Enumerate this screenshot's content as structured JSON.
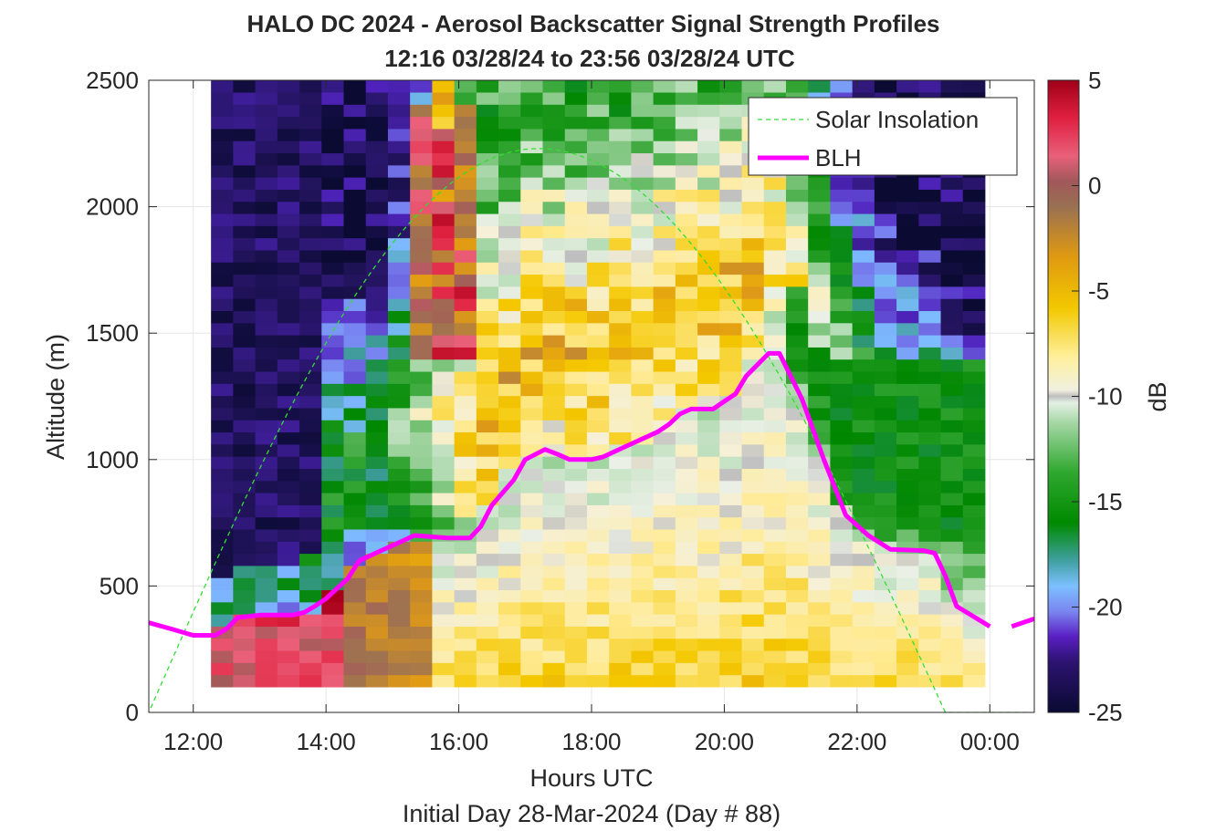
{
  "chart_data": {
    "type": "heatmap",
    "title": "HALO DC 2024 - Aerosol Backscatter Signal Strength Profiles",
    "subtitle": "12:16 03/28/24 to 23:56 03/28/24  UTC",
    "xlabel": "Hours UTC",
    "xlabel2": "Initial Day 28-Mar-2024 (Day # 88)",
    "ylabel": "Altitude (m)",
    "xlim": [
      11.33,
      24.67
    ],
    "ylim": [
      0,
      2500
    ],
    "xticks": [
      12,
      14,
      16,
      18,
      20,
      22,
      24
    ],
    "xtick_labels": [
      "12:00",
      "14:00",
      "16:00",
      "18:00",
      "20:00",
      "22:00",
      "00:00"
    ],
    "yticks": [
      0,
      500,
      1000,
      1500,
      2000,
      2500
    ],
    "ytick_labels": [
      "0",
      "500",
      "1000",
      "1500",
      "2000",
      "2500"
    ],
    "grid": true,
    "colorbar": {
      "label": "dB",
      "range": [
        -25,
        5
      ],
      "ticks": [
        -25,
        -20,
        -15,
        -10,
        -5,
        0,
        5
      ],
      "tick_labels": [
        "-25",
        "-20",
        "-15",
        "-10",
        "-5",
        "0",
        "5"
      ]
    },
    "legend": {
      "placement": "top-right",
      "entries": [
        {
          "label": "Solar Insolation",
          "color": "#33dd33",
          "style": "dashed"
        },
        {
          "label": "BLH",
          "color": "#ff00ff",
          "style": "solid"
        }
      ]
    },
    "heatmap": {
      "x_start": 12.27,
      "x_end": 23.93,
      "y_start": 100,
      "y_end": 2500,
      "x_bins": 35,
      "y_bins": 50,
      "value_range_db": [
        -25,
        5
      ]
    },
    "series": [
      {
        "name": "BLH",
        "color": "#ff00ff",
        "x": [
          11.33,
          11.67,
          12.0,
          12.17,
          12.33,
          12.5,
          12.67,
          13.0,
          13.3,
          13.5,
          13.67,
          13.83,
          14.0,
          14.33,
          14.5,
          14.83,
          15.0,
          15.17,
          15.33,
          15.83,
          16.17,
          16.33,
          16.5,
          16.83,
          17.0,
          17.3,
          17.5,
          17.67,
          18.0,
          18.17,
          18.5,
          19.0,
          19.17,
          19.33,
          19.5,
          19.83,
          20.0,
          20.17,
          20.33,
          20.67,
          20.83,
          21.17,
          21.5,
          21.83,
          22.17,
          22.5,
          23.0,
          23.17,
          23.33,
          23.5,
          24.0
        ]
      },
      {
        "name": "Solar Insolation",
        "color": "#33dd33"
      }
    ],
    "blh_values": [
      355,
      330,
      305,
      305,
      305,
      330,
      375,
      385,
      385,
      385,
      395,
      420,
      450,
      530,
      600,
      640,
      660,
      680,
      700,
      690,
      690,
      735,
      820,
      920,
      1000,
      1040,
      1020,
      1000,
      1000,
      1010,
      1050,
      1110,
      1140,
      1180,
      1200,
      1200,
      1230,
      1260,
      1330,
      1420,
      1420,
      1240,
      1000,
      780,
      700,
      645,
      640,
      630,
      540,
      420,
      340
    ],
    "blh_tail": {
      "x": [
        24.33,
        24.67
      ],
      "values": [
        340,
        370
      ]
    },
    "solar_insolation": {
      "rise_hour": 11.33,
      "peak_hour": 17.2,
      "set_hour": 23.33,
      "peak_altitude_m": 2230,
      "floor_altitude_m": 0
    }
  }
}
